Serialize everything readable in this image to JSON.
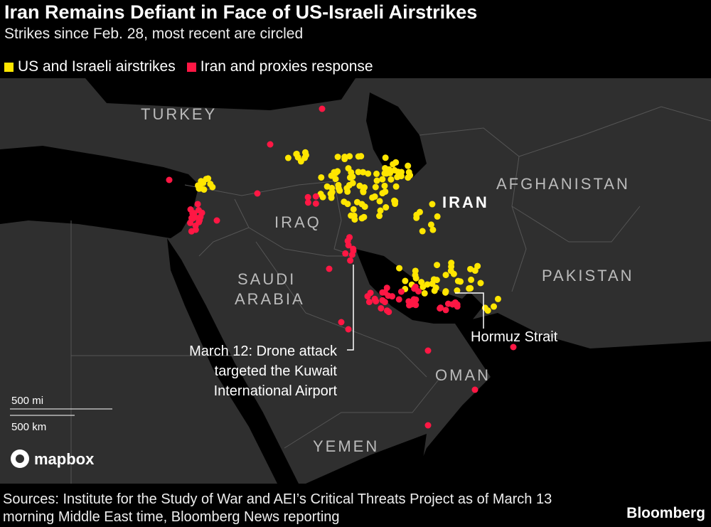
{
  "header": {
    "title": "Iran Remains Defiant in Face of US-Israeli Airstrikes",
    "subtitle": "Strikes since Feb. 28, most recent are circled"
  },
  "legend": [
    {
      "label": "US and Israeli airstrikes",
      "color": "#ffe600"
    },
    {
      "label": "Iran and proxies response",
      "color": "#ff1744"
    }
  ],
  "map": {
    "labels": [
      "TURKEY",
      "IRAQ",
      "IRAN",
      "AFGHANISTAN",
      "SAUDI",
      "ARABIA",
      "PAKISTAN",
      "OMAN",
      "YEMEN"
    ],
    "annotations": [
      "March 12: Drone attack",
      "targeted the Kuwait",
      "International Airport",
      "Hormuz Strait"
    ],
    "scale": [
      "500 mi",
      "500 km"
    ],
    "attribution": "mapbox"
  },
  "footer": {
    "sources": "Sources: Institute for the Study of War and AEI’s Critical Threats Project as of March 13 morning Middle East time, Bloomberg News reporting",
    "brand": "Bloomberg"
  }
}
